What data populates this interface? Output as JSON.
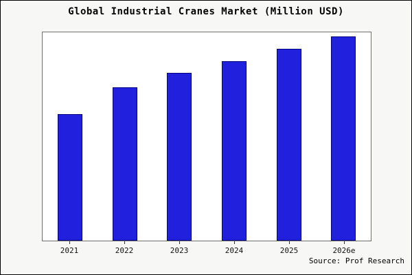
{
  "title": "Global Industrial Cranes Market (Million USD)",
  "source": "Source: Prof Research",
  "chart_data": {
    "type": "bar",
    "title": "Global Industrial Cranes Market (Million USD)",
    "categories": [
      "2021",
      "2022",
      "2023",
      "2024",
      "2025",
      "2026e"
    ],
    "values": [
      62,
      75,
      82,
      88,
      94,
      100
    ],
    "xlabel": "",
    "ylabel": "",
    "ylim": [
      0,
      102
    ],
    "grid": false,
    "legend": false,
    "bar_color": "#2020dd",
    "bar_border_color": "#000080",
    "note_units": "relative scale, no y-axis shown in source image"
  }
}
